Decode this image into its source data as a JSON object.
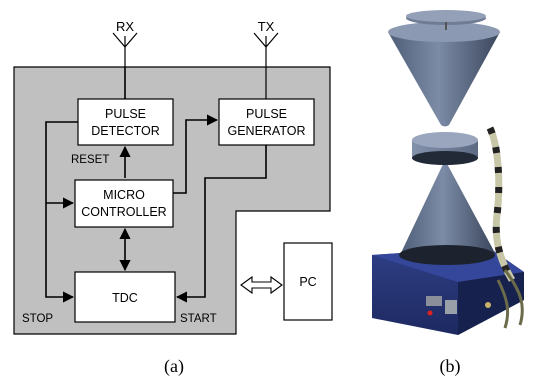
{
  "diagram": {
    "antennas": {
      "rx": "RX",
      "tx": "TX"
    },
    "blocks": {
      "pulse_detector": [
        "PULSE",
        "DETECTOR"
      ],
      "pulse_generator": [
        "PULSE",
        "GENERATOR"
      ],
      "micro_controller": [
        "MICRO",
        "CONTROLLER"
      ],
      "tdc": [
        "TDC"
      ],
      "pc": [
        "PC"
      ]
    },
    "signals": {
      "reset": "RESET",
      "stop": "STOP",
      "start": "START"
    },
    "colors": {
      "board_fill": "#c0c0c0",
      "block_fill": "#ffffff",
      "line": "#000000"
    }
  },
  "photo": {
    "subject": "cone-antenna-device-photo"
  },
  "captions": {
    "left": "(a)",
    "right": "(b)"
  }
}
